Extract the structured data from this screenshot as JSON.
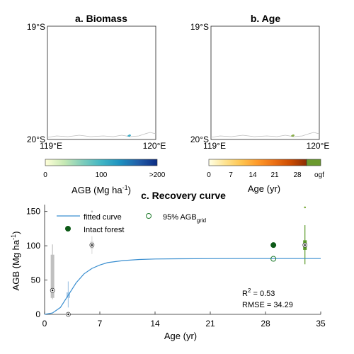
{
  "map_a": {
    "title": "a. Biomass",
    "lat_top": "19°S",
    "lat_bottom": "20°S",
    "lon_left": "119°E",
    "lon_right": "120°E"
  },
  "map_b": {
    "title": "b. Age",
    "lat_top": "19°S",
    "lat_bottom": "20°S",
    "lon_left": "119°E",
    "lon_right": "120°E"
  },
  "colorbar_a": {
    "ticks": [
      "0",
      "100",
      ">200"
    ],
    "label": "AGB (Mg ha",
    "label_sup": "-1",
    "label_end": ")",
    "colors": [
      "#ffffd9",
      "#c7e9b4",
      "#7fcdbb",
      "#41b6c4",
      "#1d91c0",
      "#225ea8",
      "#0c2c84"
    ]
  },
  "colorbar_b": {
    "ticks": [
      "0",
      "7",
      "14",
      "21",
      "28",
      "ogf"
    ],
    "label": "Age (yr)",
    "colors": [
      "#ffffe5",
      "#fee391",
      "#fec44f",
      "#fe9929",
      "#ec7014",
      "#cc4c02",
      "#8c2d04"
    ],
    "ogf_color": "#6b9a2e"
  },
  "chart_data": {
    "type": "scatter",
    "title": "c. Recovery curve",
    "xlabel": "Age (yr)",
    "ylabel": "AGB (Mg ha",
    "ylabel_sup": "-1",
    "ylabel_end": ")",
    "xlim": [
      0,
      35
    ],
    "ylim": [
      0,
      160
    ],
    "xticks": [
      0,
      7,
      14,
      21,
      28,
      35
    ],
    "yticks": [
      0,
      50,
      100,
      150
    ],
    "legend": [
      {
        "label": "fitted curve",
        "marker": "line",
        "color": "#3b8fd0"
      },
      {
        "label": "95% AGB",
        "sub": "grid",
        "marker": "open-circle",
        "color": "#1e7a2a"
      },
      {
        "label": "Intact forest",
        "marker": "filled-circle",
        "color": "#0d5a17"
      }
    ],
    "fitted_curve": {
      "color": "#3b8fd0",
      "x": [
        0,
        1,
        2,
        3,
        4,
        5,
        6,
        7,
        8,
        10,
        12,
        14,
        17,
        21,
        25,
        28,
        31,
        35
      ],
      "y": [
        0,
        2,
        10,
        28,
        46,
        59,
        67,
        72,
        75.5,
        78.5,
        80,
        80.7,
        81,
        81.2,
        81.3,
        81.3,
        81.3,
        81.3
      ]
    },
    "boxes": [
      {
        "x": 1,
        "q1": 24,
        "median": 35,
        "q3": 87,
        "whisker_low": 22,
        "whisker_high": 102,
        "color": "#c0c0c0"
      },
      {
        "x": 3,
        "q1": 24,
        "median": 28,
        "q3": 32,
        "whisker_low": 10,
        "whisker_high": 48,
        "color": "#a9c9e6"
      },
      {
        "x": 6,
        "q1": 96,
        "median": 101,
        "q3": 106,
        "whisker_low": 88,
        "whisker_high": 114,
        "color": "#dddddd"
      },
      {
        "x": 33,
        "q1": 94,
        "median": 101,
        "q3": 108,
        "whisker_low": 73,
        "whisker_high": 130,
        "color": "#5a9a2a"
      }
    ],
    "outliers": [
      {
        "x": 6,
        "y": 150,
        "color": "#bbbbbb"
      },
      {
        "x": 33,
        "y": 156,
        "color": "#7aaa3a"
      }
    ],
    "dots": [
      {
        "x": 1,
        "y": 35
      },
      {
        "x": 3,
        "y": 0
      },
      {
        "x": 6,
        "y": 101
      },
      {
        "x": 33,
        "y": 101
      }
    ],
    "intact_forest": [
      {
        "x": 29,
        "y": 101
      }
    ],
    "agb95_grid": [
      {
        "x": 29,
        "y": 81
      }
    ],
    "stats": {
      "r2_label": "R",
      "r2_sup": "2",
      "r2_value": " = 0.53",
      "rmse": "RMSE = 34.29"
    }
  }
}
